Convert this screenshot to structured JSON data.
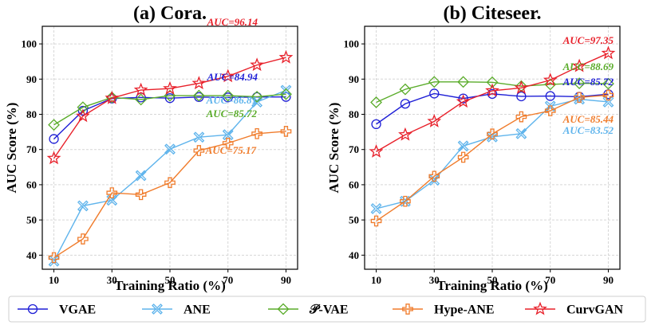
{
  "colors": {
    "VGAE": "#1f1fd6",
    "ANE": "#5fb4ec",
    "P-VAE": "#5aac2a",
    "Hype-ANE": "#f07c2c",
    "CurvGAN": "#e8202a"
  },
  "legend": [
    "VGAE",
    "ANE",
    "𝒫-VAE",
    "Hype-ANE",
    "CurvGAN"
  ],
  "chart_data": [
    {
      "type": "line",
      "title": "(a) Cora.",
      "xlabel": "Training Ratio (%)",
      "ylabel": "AUC Score (%)",
      "x": [
        10,
        20,
        30,
        40,
        50,
        60,
        70,
        80,
        90
      ],
      "xticks": [
        10,
        30,
        50,
        70,
        90
      ],
      "yticks": [
        40,
        50,
        60,
        70,
        80,
        90,
        100
      ],
      "xlim": [
        6,
        94
      ],
      "ylim": [
        36,
        105
      ],
      "grid": true,
      "series": [
        {
          "name": "VGAE",
          "marker": "circle",
          "values": [
            73.0,
            81.0,
            84.5,
            84.8,
            84.6,
            84.9,
            84.8,
            84.9,
            84.94
          ]
        },
        {
          "name": "ANE",
          "marker": "x",
          "values": [
            38.3,
            54.0,
            55.6,
            62.6,
            70.1,
            73.5,
            74.2,
            83.5,
            86.81
          ]
        },
        {
          "name": "P-VAE",
          "marker": "diamond",
          "values": [
            77.0,
            82.0,
            84.8,
            84.2,
            85.3,
            85.3,
            85.3,
            85.0,
            85.72
          ]
        },
        {
          "name": "Hype-ANE",
          "marker": "plus",
          "values": [
            39.3,
            44.6,
            57.7,
            57.2,
            60.6,
            69.7,
            71.8,
            74.5,
            75.17
          ]
        },
        {
          "name": "CurvGAN",
          "marker": "star",
          "values": [
            67.5,
            79.5,
            84.6,
            86.9,
            87.3,
            88.8,
            90.8,
            94.0,
            96.14
          ]
        }
      ],
      "annotations": [
        {
          "text": "AUC=96.14",
          "series": "CurvGAN",
          "value": 96.14
        },
        {
          "text": "AUC=84.94",
          "series": "VGAE",
          "value": 84.94
        },
        {
          "text": "AUC=86.81",
          "series": "ANE",
          "value": 86.81
        },
        {
          "text": "AUC=85.72",
          "series": "P-VAE",
          "value": 85.72
        },
        {
          "text": "AUC=75.17",
          "series": "Hype-ANE",
          "value": 75.17
        }
      ]
    },
    {
      "type": "line",
      "title": "(b) Citeseer.",
      "xlabel": "Training Ratio (%)",
      "ylabel": "AUC Score (%)",
      "x": [
        10,
        20,
        30,
        40,
        50,
        60,
        70,
        80,
        90
      ],
      "xticks": [
        10,
        30,
        50,
        70,
        90
      ],
      "yticks": [
        40,
        50,
        60,
        70,
        80,
        90,
        100
      ],
      "xlim": [
        6,
        94
      ],
      "ylim": [
        36,
        105
      ],
      "grid": true,
      "series": [
        {
          "name": "VGAE",
          "marker": "circle",
          "values": [
            77.2,
            83.0,
            85.9,
            84.5,
            85.8,
            85.1,
            85.2,
            85.0,
            85.72
          ]
        },
        {
          "name": "ANE",
          "marker": "x",
          "values": [
            53.2,
            55.3,
            61.3,
            71.0,
            73.6,
            74.5,
            82.3,
            84.3,
            83.52
          ]
        },
        {
          "name": "P-VAE",
          "marker": "diamond",
          "values": [
            83.4,
            87.1,
            89.2,
            89.2,
            89.1,
            88.0,
            88.5,
            88.8,
            88.69
          ]
        },
        {
          "name": "Hype-ANE",
          "marker": "plus",
          "values": [
            49.7,
            55.3,
            62.4,
            67.8,
            74.4,
            79.3,
            81.0,
            84.8,
            85.44
          ]
        },
        {
          "name": "CurvGAN",
          "marker": "star",
          "values": [
            69.4,
            74.2,
            78.0,
            83.6,
            86.7,
            87.5,
            89.7,
            93.7,
            97.35
          ]
        }
      ],
      "annotations": [
        {
          "text": "AUC=97.35",
          "series": "CurvGAN",
          "value": 97.35
        },
        {
          "text": "AUC=88.69",
          "series": "P-VAE",
          "value": 88.69
        },
        {
          "text": "AUC=85.72",
          "series": "VGAE",
          "value": 85.72
        },
        {
          "text": "AUC=85.44",
          "series": "Hype-ANE",
          "value": 85.44
        },
        {
          "text": "AUC=83.52",
          "series": "ANE",
          "value": 83.52
        }
      ]
    }
  ]
}
